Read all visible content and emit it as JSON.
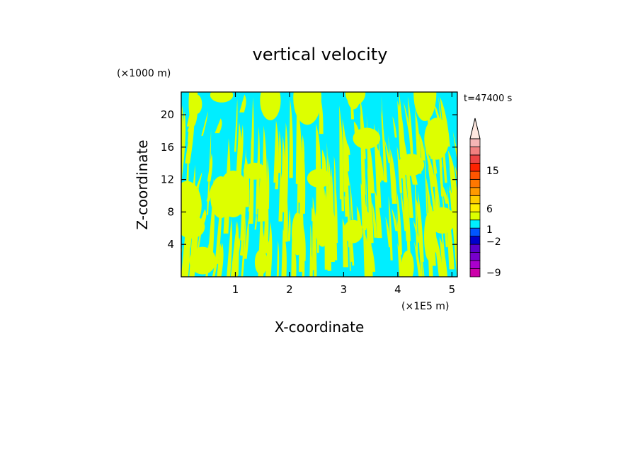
{
  "chart_data": {
    "type": "heatmap",
    "title": "vertical velocity",
    "xlabel": "X-coordinate",
    "ylabel": "Z-coordinate",
    "x_unit": "(×1E5 m)",
    "y_unit": "(×1000 m)",
    "time_label": "t=47400 s",
    "xlim": [
      0,
      5.1
    ],
    "ylim": [
      0,
      22.8
    ],
    "x_ticks": [
      1,
      2,
      3,
      4,
      5
    ],
    "y_ticks": [
      4,
      8,
      12,
      16,
      20
    ],
    "field_colors": {
      "negative": "#00eeff",
      "positive": "#ddff00"
    },
    "colorbar": {
      "ticks": [
        15,
        6,
        1,
        -2,
        -9
      ],
      "segments": [
        {
          "color": "#cc00aa"
        },
        {
          "color": "#aa00cc"
        },
        {
          "color": "#7700cc"
        },
        {
          "color": "#5a00cc"
        },
        {
          "color": "#0000cc"
        },
        {
          "color": "#0055ff"
        },
        {
          "color": "#00eeff"
        },
        {
          "color": "#ddff00"
        },
        {
          "color": "#ffee00"
        },
        {
          "color": "#ffcc00"
        },
        {
          "color": "#ff9900"
        },
        {
          "color": "#ff7700"
        },
        {
          "color": "#ff5500"
        },
        {
          "color": "#ff2200"
        },
        {
          "color": "#ee4444"
        },
        {
          "color": "#f28080"
        },
        {
          "color": "#f5b5b5"
        }
      ],
      "extend_arrow_color": "#ffe8e0"
    }
  }
}
